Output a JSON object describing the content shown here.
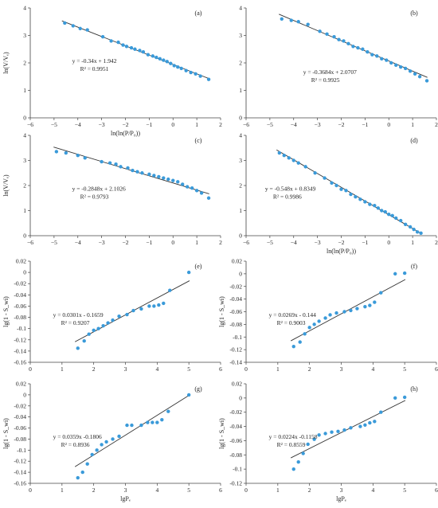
{
  "chart_data": [
    {
      "type": "scatter",
      "panel_label": "(a)",
      "xlabel": "ln(ln(P/P₀))",
      "ylabel": "ln(V/Vₑ)",
      "xlim": [
        -6,
        2
      ],
      "ylim": [
        0,
        4
      ],
      "xticks": [
        "−6",
        "−5",
        "−4",
        "−3",
        "−2",
        "−1",
        "0",
        "1",
        "2"
      ],
      "yticks": [
        "0",
        "1",
        "2",
        "3",
        "4"
      ],
      "x": [
        -4.55,
        -4.2,
        -3.9,
        -3.6,
        -2.95,
        -2.6,
        -2.3,
        -2.1,
        -1.95,
        -1.75,
        -1.6,
        -1.4,
        -1.25,
        -1.05,
        -0.85,
        -0.7,
        -0.55,
        -0.4,
        -0.25,
        -0.1,
        0.05,
        0.2,
        0.35,
        0.55,
        0.75,
        0.95,
        1.15,
        1.5
      ],
      "y": [
        3.45,
        3.35,
        3.25,
        3.2,
        2.95,
        2.8,
        2.75,
        2.65,
        2.6,
        2.55,
        2.5,
        2.45,
        2.4,
        2.3,
        2.25,
        2.2,
        2.15,
        2.1,
        2.05,
        1.98,
        1.9,
        1.85,
        1.8,
        1.72,
        1.65,
        1.6,
        1.52,
        1.4
      ],
      "fit": {
        "slope": -0.34,
        "intercept": 1.942
      },
      "equation": "y = -0.34x + 1.942",
      "r2": "R² = 0.9951"
    },
    {
      "type": "scatter",
      "panel_label": "(b)",
      "xlabel": "",
      "ylabel": "",
      "xlim": [
        -6,
        2
      ],
      "ylim": [
        0,
        4
      ],
      "xticks": [
        "−6",
        "−5",
        "−4",
        "−3",
        "−2",
        "−1",
        "0",
        "1",
        "2"
      ],
      "yticks": [
        "0",
        "1",
        "2",
        "3",
        "4"
      ],
      "x": [
        -4.5,
        -4.1,
        -3.8,
        -3.4,
        -2.9,
        -2.6,
        -2.3,
        -2.1,
        -1.9,
        -1.7,
        -1.5,
        -1.3,
        -1.1,
        -0.9,
        -0.7,
        -0.5,
        -0.3,
        -0.1,
        0.1,
        0.3,
        0.5,
        0.7,
        0.9,
        1.1,
        1.3,
        1.6
      ],
      "y": [
        3.6,
        3.55,
        3.5,
        3.4,
        3.15,
        3.05,
        2.95,
        2.85,
        2.8,
        2.7,
        2.6,
        2.55,
        2.5,
        2.4,
        2.3,
        2.25,
        2.15,
        2.1,
        2.0,
        1.92,
        1.85,
        1.8,
        1.7,
        1.6,
        1.5,
        1.35
      ],
      "fit": {
        "slope": -0.3684,
        "intercept": 2.0707
      },
      "equation": "y = -0.3684x + 2.0707",
      "r2": "R² = 0.9925"
    },
    {
      "type": "scatter",
      "panel_label": "(c)",
      "xlabel": "",
      "ylabel": "ln(V/Vₑ)",
      "xlim": [
        -6,
        2
      ],
      "ylim": [
        0,
        4
      ],
      "xticks": [
        "−6",
        "−5",
        "−4",
        "−3",
        "−2",
        "−1",
        "0",
        "1",
        "2"
      ],
      "yticks": [
        "0",
        "1",
        "2",
        "3",
        "4"
      ],
      "x": [
        -4.9,
        -4.5,
        -4.0,
        -3.7,
        -3.0,
        -2.65,
        -2.4,
        -2.2,
        -1.9,
        -1.7,
        -1.5,
        -1.3,
        -1.0,
        -0.8,
        -0.6,
        -0.4,
        -0.2,
        0.0,
        0.2,
        0.4,
        0.6,
        0.8,
        1.0,
        1.2,
        1.5
      ],
      "y": [
        3.35,
        3.3,
        3.2,
        3.1,
        2.95,
        2.9,
        2.85,
        2.75,
        2.7,
        2.6,
        2.55,
        2.5,
        2.45,
        2.4,
        2.35,
        2.3,
        2.25,
        2.2,
        2.15,
        2.05,
        1.95,
        1.9,
        1.8,
        1.7,
        1.5
      ],
      "fit": {
        "slope": -0.2848,
        "intercept": 2.1026
      },
      "equation": "y = -0.2848x + 2.1026",
      "r2": "R² = 0.9793"
    },
    {
      "type": "scatter",
      "panel_label": "(d)",
      "xlabel": "ln(ln(P/P₀))",
      "ylabel": "",
      "xlim": [
        -6,
        2
      ],
      "ylim": [
        0,
        4
      ],
      "xticks": [
        "−6",
        "−5",
        "−4",
        "−3",
        "−2",
        "−1",
        "0",
        "1",
        "2"
      ],
      "yticks": [
        "0",
        "1",
        "2",
        "3",
        "4"
      ],
      "x": [
        -4.6,
        -4.4,
        -4.2,
        -4.0,
        -3.8,
        -3.5,
        -3.1,
        -2.7,
        -2.4,
        -2.2,
        -2.0,
        -1.8,
        -1.6,
        -1.4,
        -1.2,
        -1.0,
        -0.8,
        -0.6,
        -0.45,
        -0.3,
        -0.15,
        0.0,
        0.15,
        0.3,
        0.5,
        0.7,
        0.9,
        1.05,
        1.2,
        1.35
      ],
      "y": [
        3.3,
        3.2,
        3.1,
        3.0,
        2.9,
        2.75,
        2.5,
        2.3,
        2.1,
        2.0,
        1.85,
        1.8,
        1.65,
        1.55,
        1.45,
        1.35,
        1.25,
        1.2,
        1.1,
        1.0,
        0.95,
        0.85,
        0.8,
        0.7,
        0.6,
        0.45,
        0.35,
        0.25,
        0.15,
        0.1
      ],
      "fit": {
        "slope": -0.548,
        "intercept": 0.8349
      },
      "equation": "y = -0.548x + 0.8349",
      "r2": "R² = 0.9986"
    },
    {
      "type": "scatter",
      "panel_label": "(e)",
      "xlabel": "",
      "ylabel": "lg(1 - S_wi)",
      "xlim": [
        0,
        6
      ],
      "ylim": [
        -0.16,
        0.02
      ],
      "xticks": [
        "0",
        "1",
        "2",
        "3",
        "4",
        "5",
        "6"
      ],
      "yticks": [
        "-0.16",
        "-0.14",
        "-0.12",
        "-0.1",
        "-0.08",
        "-0.06",
        "-0.04",
        "-0.02",
        "0",
        "0.02"
      ],
      "x": [
        1.5,
        1.7,
        1.85,
        2.0,
        2.15,
        2.3,
        2.45,
        2.6,
        2.8,
        3.05,
        3.25,
        3.5,
        3.75,
        3.9,
        4.05,
        4.2,
        4.4,
        5.0
      ],
      "y": [
        -0.135,
        -0.122,
        -0.11,
        -0.103,
        -0.1,
        -0.095,
        -0.09,
        -0.085,
        -0.078,
        -0.075,
        -0.068,
        -0.065,
        -0.06,
        -0.06,
        -0.058,
        -0.055,
        -0.032,
        0.0
      ],
      "fit": {
        "slope": 0.0301,
        "intercept": -0.1659
      },
      "equation": "y = 0.0301x - 0.1659",
      "r2": "R² = 0.9207"
    },
    {
      "type": "scatter",
      "panel_label": "(f)",
      "xlabel": "",
      "ylabel": "lg(1 - S_wi)",
      "xlim": [
        0,
        6
      ],
      "ylim": [
        -0.14,
        0.02
      ],
      "xticks": [
        "0",
        "1",
        "2",
        "3",
        "4",
        "5",
        "6"
      ],
      "yticks": [
        "-0.14",
        "-0.12",
        "-0.1",
        "-0.08",
        "-0.06",
        "-0.04",
        "-0.02",
        "0",
        "0.02"
      ],
      "x": [
        1.5,
        1.7,
        1.85,
        2.0,
        2.15,
        2.3,
        2.5,
        2.65,
        2.85,
        3.1,
        3.3,
        3.5,
        3.75,
        3.9,
        4.05,
        4.25,
        4.7,
        5.0
      ],
      "y": [
        -0.115,
        -0.108,
        -0.095,
        -0.085,
        -0.08,
        -0.075,
        -0.07,
        -0.065,
        -0.062,
        -0.06,
        -0.058,
        -0.055,
        -0.052,
        -0.05,
        -0.045,
        -0.03,
        0.0,
        0.001
      ],
      "fit": {
        "slope": 0.0269,
        "intercept": -0.144
      },
      "equation": "y = 0.0269x - 0.144",
      "r2": "R² = 0.9003"
    },
    {
      "type": "scatter",
      "panel_label": "(g)",
      "xlabel": "lgPₑ",
      "ylabel": "lg(1 - S_wi)",
      "xlim": [
        0,
        6
      ],
      "ylim": [
        -0.16,
        0.02
      ],
      "xticks": [
        "0",
        "1",
        "2",
        "3",
        "4",
        "5",
        "6"
      ],
      "yticks": [
        "-0.16",
        "-0.14",
        "-0.12",
        "-0.1",
        "-0.08",
        "-0.06",
        "-0.04",
        "-0.02",
        "0",
        "0.02"
      ],
      "x": [
        1.5,
        1.65,
        1.8,
        1.95,
        2.1,
        2.25,
        2.4,
        2.6,
        2.8,
        3.05,
        3.2,
        3.5,
        3.7,
        3.85,
        4.0,
        4.15,
        4.35,
        5.0
      ],
      "y": [
        -0.15,
        -0.14,
        -0.125,
        -0.108,
        -0.1,
        -0.09,
        -0.085,
        -0.08,
        -0.075,
        -0.055,
        -0.055,
        -0.055,
        -0.05,
        -0.05,
        -0.05,
        -0.045,
        -0.03,
        0.0
      ],
      "fit": {
        "slope": 0.0359,
        "intercept": -0.1806
      },
      "equation": "y = 0.0359x -0.1806",
      "r2": "R² = 0.8936"
    },
    {
      "type": "scatter",
      "panel_label": "(h)",
      "xlabel": "lgPₑ",
      "ylabel": "lg(1 - S_wi)",
      "xlim": [
        0,
        6
      ],
      "ylim": [
        -0.12,
        0.02
      ],
      "xticks": [
        "0",
        "1",
        "2",
        "3",
        "4",
        "5",
        "6"
      ],
      "yticks": [
        "-0.12",
        "-0.1",
        "-0.08",
        "-0.06",
        "-0.04",
        "-0.02",
        "0",
        "0.02"
      ],
      "x": [
        1.5,
        1.65,
        1.8,
        1.95,
        2.15,
        2.3,
        2.5,
        2.7,
        2.9,
        3.1,
        3.3,
        3.6,
        3.75,
        3.9,
        4.05,
        4.25,
        4.7,
        5.0
      ],
      "y": [
        -0.1,
        -0.09,
        -0.078,
        -0.065,
        -0.058,
        -0.052,
        -0.05,
        -0.048,
        -0.047,
        -0.045,
        -0.042,
        -0.04,
        -0.038,
        -0.035,
        -0.033,
        -0.02,
        0.0,
        0.001
      ],
      "fit": {
        "slope": 0.0224,
        "intercept": -0.1158
      },
      "equation": "y = 0.0224x -0.1158",
      "r2": "R² = 0.8559"
    }
  ],
  "style": {
    "marker_color": "#3a9ad9",
    "line_color": "#333333",
    "axis_color": "#444444"
  }
}
